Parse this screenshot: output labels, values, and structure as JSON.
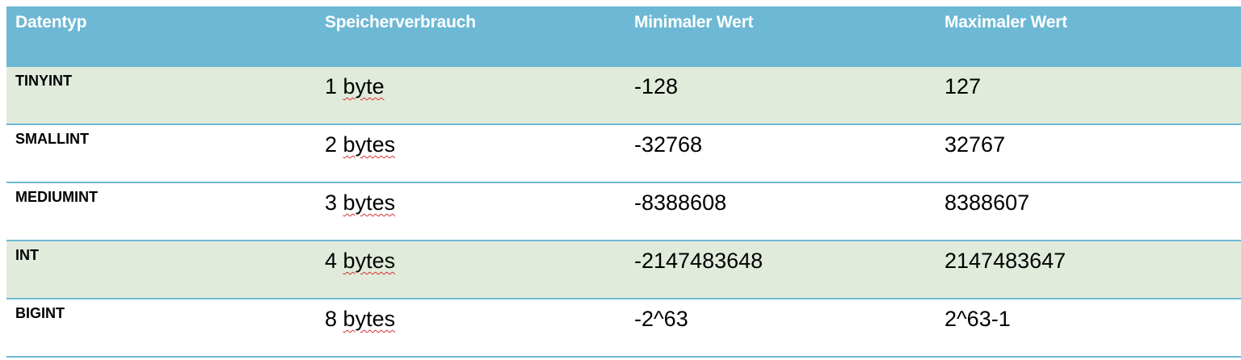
{
  "table": {
    "headers": [
      "Datentyp",
      "Speicherverbrauch",
      "Minimaler Wert",
      "Maximaler Wert"
    ],
    "rows": [
      {
        "type": "TINYINT",
        "size_num": "1",
        "size_unit": "byte",
        "min": "-128",
        "max": "127"
      },
      {
        "type": "SMALLINT",
        "size_num": "2",
        "size_unit": "bytes",
        "min": "-32768",
        "max": "32767"
      },
      {
        "type": "MEDIUMINT",
        "size_num": "3",
        "size_unit": "bytes",
        "min": "-8388608",
        "max": "8388607"
      },
      {
        "type": "INT",
        "size_num": "4",
        "size_unit": "bytes",
        "min": "-2147483648",
        "max": "2147483647"
      },
      {
        "type": "BIGINT",
        "size_num": "8",
        "size_unit": "bytes",
        "min": "-2^63",
        "max": "2^63-1"
      }
    ]
  },
  "colors": {
    "header_bg": "#6db8d4",
    "shaded_row_bg": "#e1ebdb",
    "border": "#6db8d4",
    "spellcheck_underline": "#d43030"
  }
}
